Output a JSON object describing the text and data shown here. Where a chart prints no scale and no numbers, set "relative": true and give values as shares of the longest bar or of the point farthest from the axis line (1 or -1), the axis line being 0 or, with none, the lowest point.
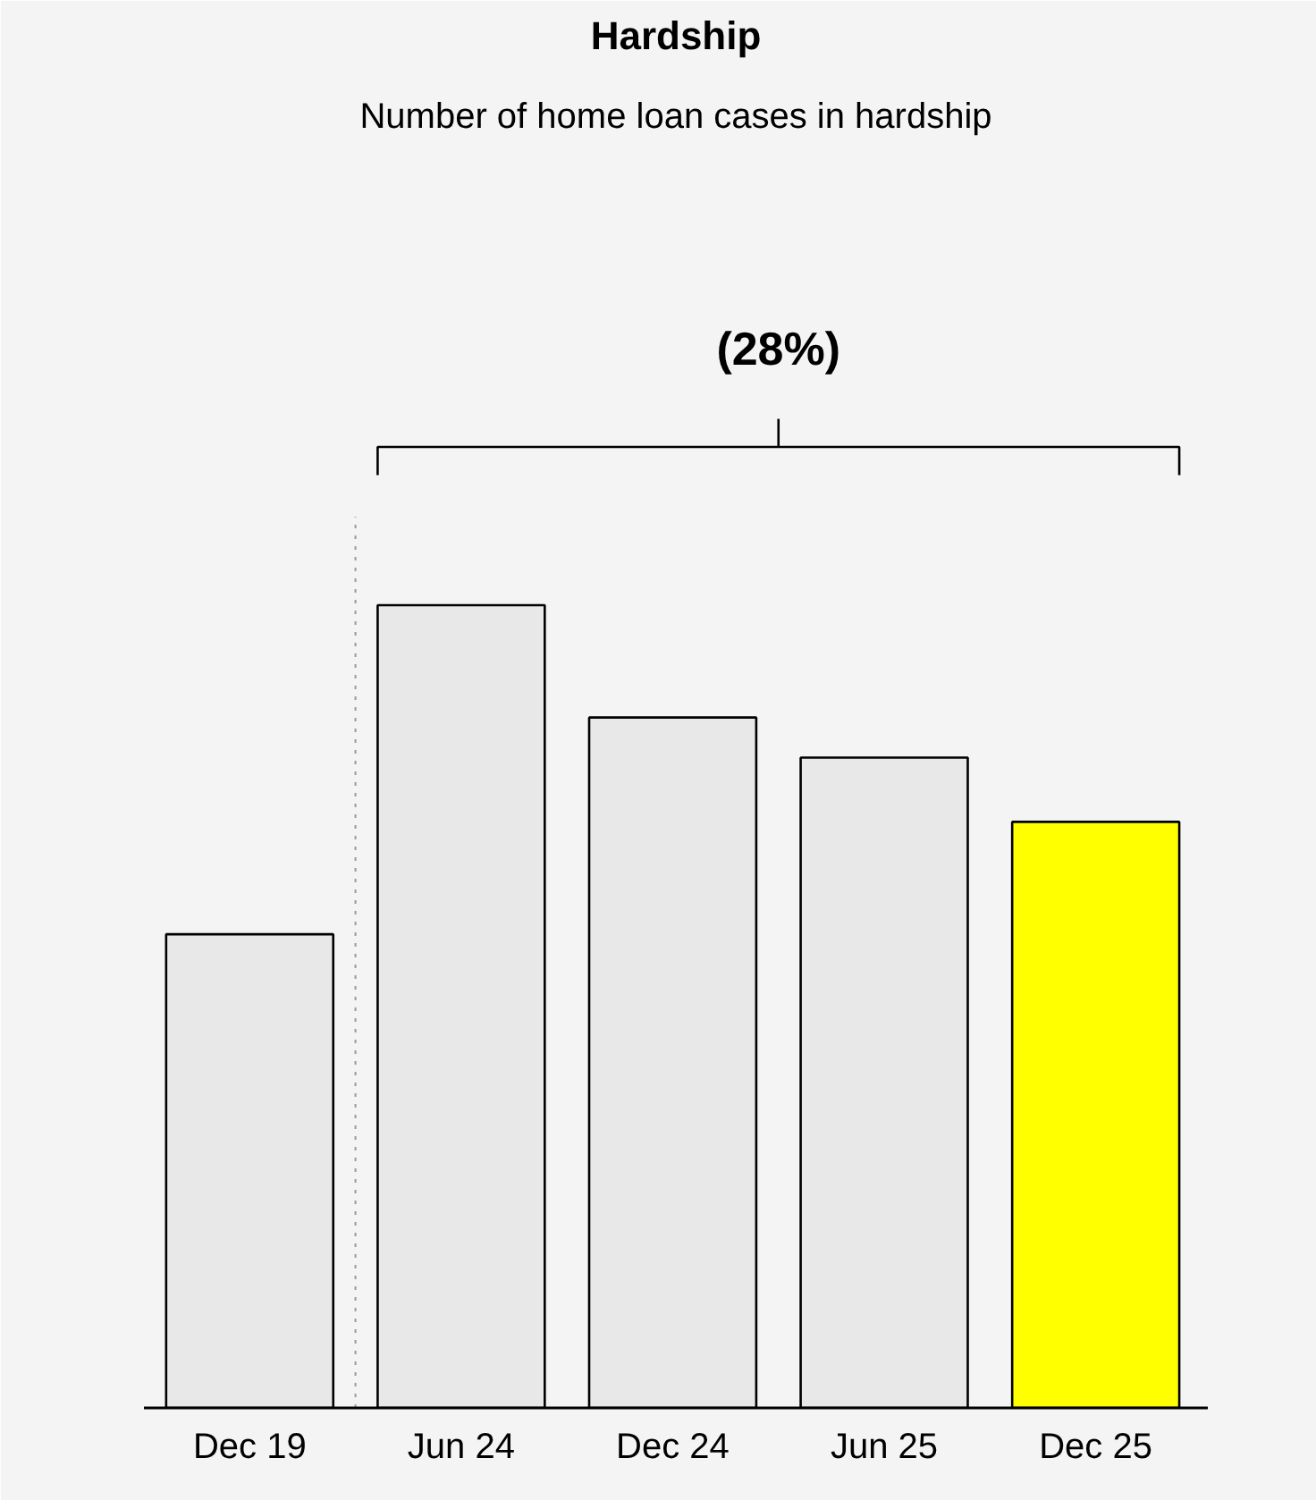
{
  "chart_data": {
    "type": "bar",
    "title": "Hardship",
    "subtitle": "Number of home loan cases in hardship",
    "categories": [
      "Dec 19",
      "Jun 24",
      "Dec 24",
      "Jun 25",
      "Dec 25"
    ],
    "values": [
      0.59,
      1,
      0.86,
      0.81,
      0.73
    ],
    "colors": [
      "#e8e8e8",
      "#e8e8e8",
      "#e8e8e8",
      "#e8e8e8",
      "#ffff00"
    ],
    "relative": true,
    "grid": false,
    "annotations": [
      "(28%)"
    ]
  }
}
